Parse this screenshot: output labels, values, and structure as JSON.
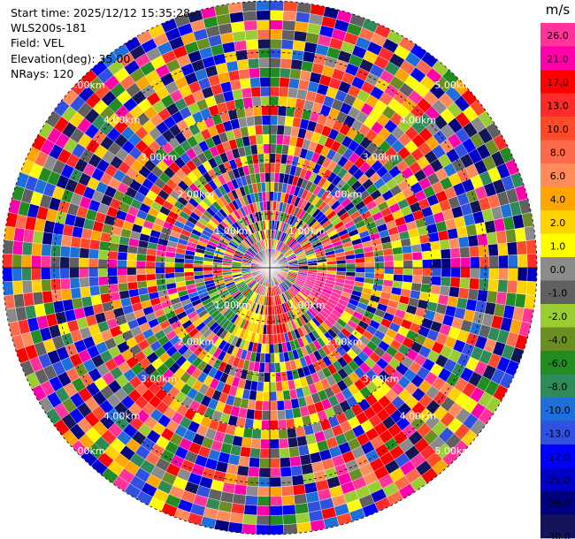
{
  "header": {
    "start_time": "Start time: 2025/12/12 15:35:28",
    "site": "WLS200s-181",
    "field": "Field: VEL",
    "elevation": "Elevation(deg): 35.00",
    "nrays": "NRays: 120"
  },
  "chart_data": {
    "type": "heatmap",
    "projection": "polar-ppi",
    "range_ring_labels": [
      "1.00km",
      "2.00km",
      "3.00km",
      "4.00km",
      "5.00km"
    ],
    "nrays": 120,
    "colorbar": {
      "unit_label": "m/s",
      "tick_labels": [
        "26.0",
        "21.0",
        "17.0",
        "13.0",
        "10.0",
        "8.0",
        "6.0",
        "4.0",
        "2.0",
        "1.0",
        "0.0",
        "-1.0",
        "-2.0",
        "-4.0",
        "-6.0",
        "-8.0",
        "-10.0",
        "-13.0",
        "-17.0",
        "-21.0",
        "-26.0",
        "-30.0"
      ],
      "colors": [
        "#ff3399",
        "#ff00aa",
        "#ff0000",
        "#ff2a2a",
        "#ff4a2a",
        "#ff6a4a",
        "#ff8a5a",
        "#ffa500",
        "#ffd200",
        "#ffff00",
        "#8b8b8b",
        "#606060",
        "#9acd32",
        "#6b8e23",
        "#228b22",
        "#2e8b57",
        "#1e6fd9",
        "#3050e0",
        "#0000ff",
        "#0000c8",
        "#000080",
        "#14145a"
      ]
    }
  }
}
